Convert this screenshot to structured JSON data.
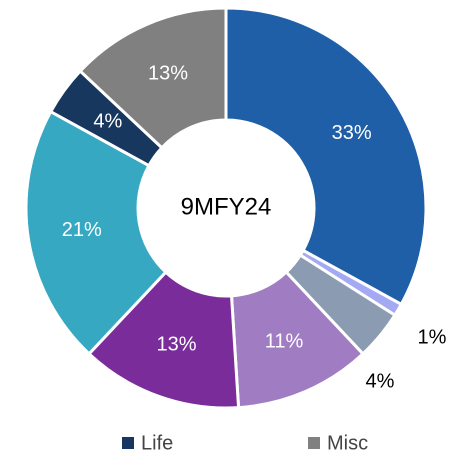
{
  "chart_data": {
    "type": "donut",
    "center_text": "9MFY24",
    "categories": [
      null,
      null,
      null,
      null,
      null,
      null,
      "Life",
      "Misc"
    ],
    "values": [
      33,
      1,
      4,
      11,
      13,
      21,
      4,
      13
    ],
    "value_labels": [
      "33%",
      "1%",
      "4%",
      "11%",
      "13%",
      "21%",
      "4%",
      "13%"
    ],
    "colors": [
      "#1f5fa8",
      "#a3a9f2",
      "#8a9bb2",
      "#a07cc2",
      "#7a2c9a",
      "#36a8c2",
      "#17375e",
      "#808080"
    ],
    "legend": "bottom"
  }
}
